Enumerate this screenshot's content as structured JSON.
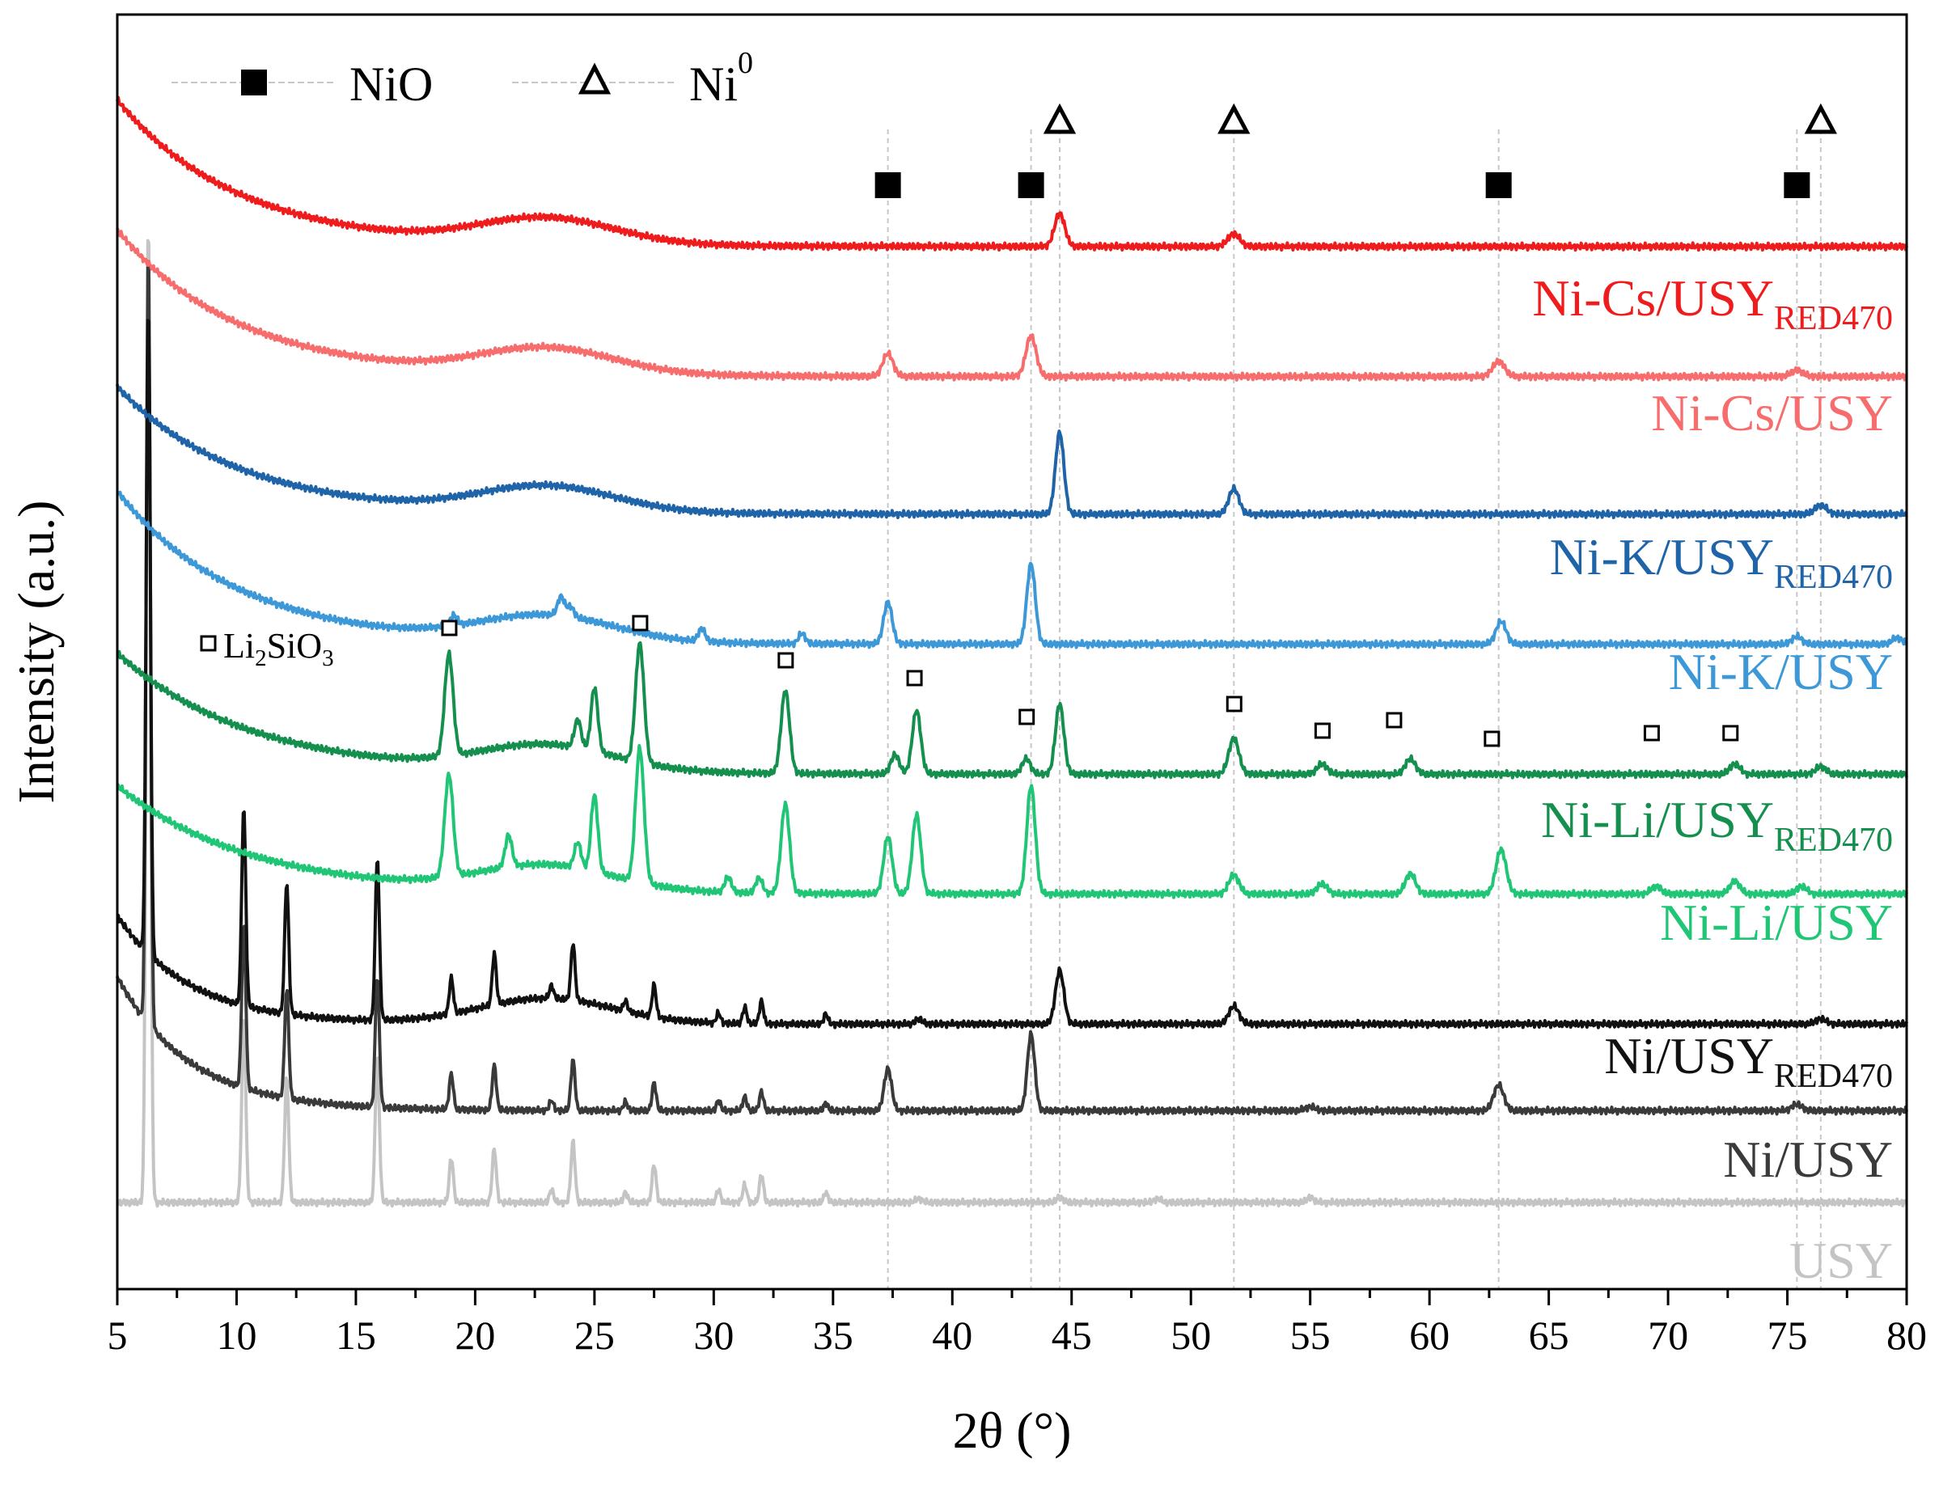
{
  "chart_data": {
    "type": "line",
    "title": "",
    "xlabel": "2θ (°)",
    "ylabel": "Intensity (a.u.)",
    "xlim": [
      5,
      80
    ],
    "ylim": [
      0,
      1
    ],
    "x_ticks": [
      5,
      10,
      15,
      20,
      25,
      30,
      35,
      40,
      45,
      50,
      55,
      60,
      65,
      70,
      75,
      80
    ],
    "legend": {
      "placement": "top-left",
      "items": [
        {
          "marker": "filled-square",
          "label": "NiO"
        },
        {
          "marker": "open-triangle",
          "label": "Ni",
          "superscript": "0"
        }
      ]
    },
    "phase_annotation": {
      "label": "Li",
      "sub1": "2",
      "mid": "SiO",
      "sub2": "3"
    },
    "reference_lines": {
      "NiO": [
        37.3,
        43.3,
        62.9,
        75.4
      ],
      "Ni0": [
        44.5,
        51.8,
        76.4
      ]
    },
    "phase_markers": {
      "NiO": [
        37.3,
        43.3,
        62.9,
        75.4
      ],
      "Ni0": [
        44.5,
        51.8,
        76.4
      ],
      "Li2SiO3": [
        18.9,
        26.9,
        33.0,
        38.4,
        43.1,
        51.8,
        55.5,
        58.5,
        62.6,
        69.3,
        72.6
      ]
    },
    "series": [
      {
        "name": "Ni-Cs/USY",
        "sub": "RED470",
        "color": "#ee1c1c",
        "baseline": 0.818,
        "rise": 0.115,
        "decay": 5.0,
        "broad": 0.02,
        "peaks": [
          [
            44.5,
            0.026,
            0.3
          ],
          [
            51.8,
            0.01,
            0.35
          ]
        ]
      },
      {
        "name": "Ni-Cs/USY",
        "sub": "",
        "color": "#f76d6d",
        "baseline": 0.716,
        "rise": 0.115,
        "decay": 5.0,
        "broad": 0.02,
        "peaks": [
          [
            37.3,
            0.018,
            0.3
          ],
          [
            43.3,
            0.032,
            0.3
          ],
          [
            62.9,
            0.012,
            0.35
          ],
          [
            75.4,
            0.005,
            0.35
          ]
        ]
      },
      {
        "name": "Ni-K/USY",
        "sub": "RED470",
        "color": "#1f64a8",
        "baseline": 0.608,
        "rise": 0.1,
        "decay": 5.0,
        "broad": 0.02,
        "peaks": [
          [
            44.5,
            0.064,
            0.25
          ],
          [
            51.8,
            0.02,
            0.3
          ],
          [
            76.4,
            0.007,
            0.35
          ]
        ]
      },
      {
        "name": "Ni-K/USY",
        "sub": "",
        "color": "#3c98d7",
        "baseline": 0.506,
        "rise": 0.12,
        "decay": 5.0,
        "broad": 0.02,
        "peaks": [
          [
            19.1,
            0.008,
            0.2
          ],
          [
            23.6,
            0.015,
            0.2
          ],
          [
            24.0,
            0.008,
            0.2
          ],
          [
            29.5,
            0.01,
            0.2
          ],
          [
            33.7,
            0.008,
            0.2
          ],
          [
            37.3,
            0.033,
            0.25
          ],
          [
            43.3,
            0.063,
            0.25
          ],
          [
            63.0,
            0.018,
            0.3
          ],
          [
            75.4,
            0.006,
            0.3
          ],
          [
            79.6,
            0.005,
            0.3
          ]
        ]
      },
      {
        "name": "Ni-Li/USY",
        "sub": "RED470",
        "color": "#148f4e",
        "baseline": 0.404,
        "rise": 0.095,
        "decay": 5.5,
        "broad": 0.02,
        "peaks": [
          [
            18.9,
            0.08,
            0.25
          ],
          [
            24.3,
            0.022,
            0.2
          ],
          [
            25.0,
            0.05,
            0.2
          ],
          [
            26.9,
            0.093,
            0.25
          ],
          [
            33.0,
            0.065,
            0.25
          ],
          [
            37.6,
            0.015,
            0.25
          ],
          [
            38.5,
            0.05,
            0.25
          ],
          [
            43.1,
            0.012,
            0.25
          ],
          [
            44.5,
            0.055,
            0.25
          ],
          [
            51.8,
            0.028,
            0.3
          ],
          [
            55.5,
            0.008,
            0.3
          ],
          [
            59.2,
            0.012,
            0.3
          ],
          [
            72.8,
            0.008,
            0.3
          ],
          [
            76.4,
            0.006,
            0.3
          ]
        ]
      },
      {
        "name": "Ni-Li/USY",
        "sub": "",
        "color": "#20c676",
        "baseline": 0.31,
        "rise": 0.085,
        "decay": 5.5,
        "broad": 0.02,
        "peaks": [
          [
            18.9,
            0.08,
            0.25
          ],
          [
            21.4,
            0.025,
            0.2
          ],
          [
            24.3,
            0.02,
            0.2
          ],
          [
            25.0,
            0.06,
            0.2
          ],
          [
            26.9,
            0.105,
            0.25
          ],
          [
            30.6,
            0.012,
            0.2
          ],
          [
            31.9,
            0.012,
            0.2
          ],
          [
            33.0,
            0.07,
            0.25
          ],
          [
            37.3,
            0.045,
            0.25
          ],
          [
            38.5,
            0.062,
            0.25
          ],
          [
            43.3,
            0.085,
            0.25
          ],
          [
            51.8,
            0.015,
            0.3
          ],
          [
            55.5,
            0.008,
            0.3
          ],
          [
            59.2,
            0.016,
            0.3
          ],
          [
            63.0,
            0.035,
            0.3
          ],
          [
            69.5,
            0.006,
            0.3
          ],
          [
            72.8,
            0.01,
            0.3
          ],
          [
            75.6,
            0.006,
            0.3
          ]
        ]
      },
      {
        "name": "Ni/USY",
        "sub": "RED470",
        "color": "#111111",
        "baseline": 0.208,
        "rise": 0.085,
        "decay": 3.0,
        "broad": 0.02,
        "peaks": [
          [
            6.3,
            0.51,
            0.12
          ],
          [
            10.3,
            0.155,
            0.12
          ],
          [
            12.1,
            0.103,
            0.12
          ],
          [
            15.9,
            0.128,
            0.12
          ],
          [
            19.0,
            0.028,
            0.12
          ],
          [
            20.8,
            0.04,
            0.12
          ],
          [
            23.2,
            0.01,
            0.12
          ],
          [
            24.1,
            0.045,
            0.12
          ],
          [
            26.3,
            0.008,
            0.12
          ],
          [
            27.5,
            0.025,
            0.12
          ],
          [
            30.2,
            0.008,
            0.12
          ],
          [
            31.3,
            0.013,
            0.12
          ],
          [
            32.0,
            0.018,
            0.12
          ],
          [
            34.7,
            0.008,
            0.12
          ],
          [
            38.6,
            0.004,
            0.2
          ],
          [
            44.5,
            0.042,
            0.25
          ],
          [
            51.8,
            0.014,
            0.3
          ],
          [
            76.4,
            0.004,
            0.3
          ]
        ]
      },
      {
        "name": "Ni/USY",
        "sub": "",
        "color": "#3a3a3a",
        "baseline": 0.14,
        "rise": 0.105,
        "decay": 3.0,
        "broad": 0.0,
        "peaks": [
          [
            6.3,
            0.61,
            0.12
          ],
          [
            10.3,
            0.128,
            0.12
          ],
          [
            12.1,
            0.085,
            0.12
          ],
          [
            15.9,
            0.103,
            0.12
          ],
          [
            19.0,
            0.028,
            0.12
          ],
          [
            20.8,
            0.035,
            0.12
          ],
          [
            23.2,
            0.008,
            0.12
          ],
          [
            24.1,
            0.04,
            0.12
          ],
          [
            26.3,
            0.007,
            0.12
          ],
          [
            27.5,
            0.022,
            0.12
          ],
          [
            30.2,
            0.008,
            0.12
          ],
          [
            31.3,
            0.011,
            0.12
          ],
          [
            32.0,
            0.015,
            0.12
          ],
          [
            34.7,
            0.006,
            0.12
          ],
          [
            37.3,
            0.033,
            0.22
          ],
          [
            43.3,
            0.06,
            0.22
          ],
          [
            55.0,
            0.003,
            0.3
          ],
          [
            62.9,
            0.02,
            0.3
          ],
          [
            75.4,
            0.005,
            0.3
          ]
        ]
      },
      {
        "name": "USY",
        "sub": "",
        "color": "#c4c4c4",
        "baseline": 0.068,
        "rise": 0.0,
        "decay": 3.0,
        "broad": 0.0,
        "peaks": [
          [
            6.3,
            0.775,
            0.12
          ],
          [
            10.3,
            0.145,
            0.12
          ],
          [
            12.1,
            0.098,
            0.12
          ],
          [
            15.9,
            0.115,
            0.12
          ],
          [
            19.0,
            0.035,
            0.12
          ],
          [
            20.8,
            0.042,
            0.12
          ],
          [
            23.2,
            0.01,
            0.12
          ],
          [
            24.1,
            0.048,
            0.12
          ],
          [
            26.3,
            0.008,
            0.12
          ],
          [
            27.5,
            0.03,
            0.12
          ],
          [
            30.2,
            0.01,
            0.12
          ],
          [
            31.3,
            0.014,
            0.12
          ],
          [
            32.0,
            0.022,
            0.12
          ],
          [
            34.7,
            0.008,
            0.12
          ],
          [
            38.6,
            0.003,
            0.2
          ],
          [
            44.5,
            0.004,
            0.2
          ],
          [
            48.6,
            0.003,
            0.2
          ],
          [
            55.0,
            0.004,
            0.2
          ]
        ]
      }
    ]
  }
}
